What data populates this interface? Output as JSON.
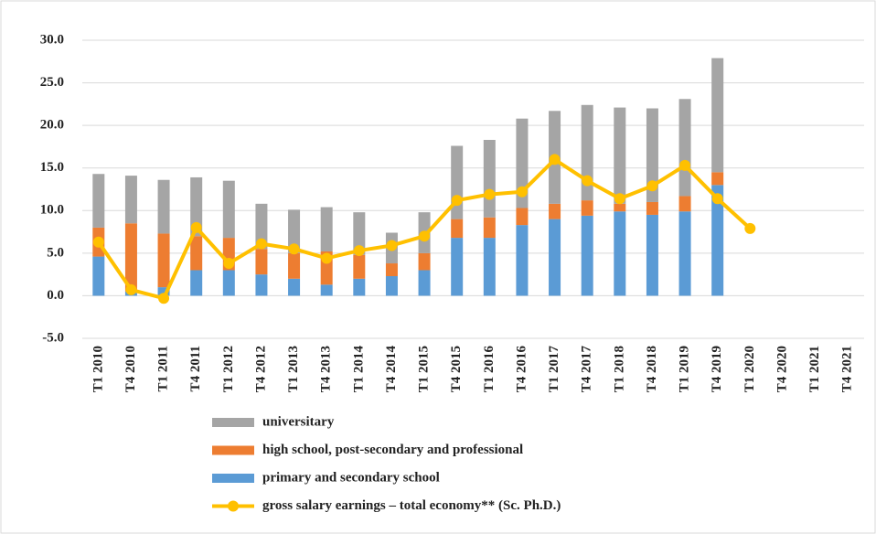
{
  "chart_data": {
    "type": "stacked-bar-line",
    "categories": [
      "T1 2010",
      "T4 2010",
      "T1 2011",
      "T4 2011",
      "T1 2012",
      "T4 2012",
      "T1 2013",
      "T4 2013",
      "T1 2014",
      "T4 2014",
      "T1 2015",
      "T4 2015",
      "T1 2016",
      "T4 2016",
      "T1 2017",
      "T4 2017",
      "T1 2018",
      "T4 2018",
      "T1 2019",
      "T4 2019",
      "T1 2020",
      "T4 2020",
      "T1 2021",
      "T4 2021"
    ],
    "series": [
      {
        "name": "primary and secondary school",
        "type": "bar",
        "color": "#5b9bd5",
        "values": [
          4.6,
          0.5,
          1.0,
          3.0,
          3.0,
          2.5,
          2.0,
          1.3,
          2.0,
          2.3,
          3.0,
          6.8,
          6.8,
          8.3,
          9.0,
          9.4,
          9.9,
          9.5,
          9.9,
          13.0,
          null,
          null,
          null,
          null
        ]
      },
      {
        "name": "high school, post-secondary and professional",
        "type": "bar",
        "color": "#ed7d31",
        "values": [
          3.4,
          8.0,
          6.3,
          4.0,
          3.8,
          3.0,
          3.0,
          3.9,
          2.8,
          1.5,
          2.0,
          2.2,
          2.4,
          2.0,
          1.8,
          1.8,
          0.9,
          1.5,
          1.8,
          1.5,
          null,
          null,
          null,
          null
        ]
      },
      {
        "name": "universitary",
        "type": "bar",
        "color": "#a5a5a5",
        "values": [
          6.3,
          5.6,
          6.3,
          6.9,
          6.7,
          5.3,
          5.1,
          5.2,
          5.0,
          3.6,
          4.8,
          8.6,
          9.1,
          10.5,
          10.9,
          11.2,
          11.3,
          11.0,
          11.4,
          13.4,
          null,
          null,
          null,
          null
        ]
      },
      {
        "name": "gross salary earnings – total economy** (Sc. Ph.D.)",
        "type": "line",
        "color": "#ffc000",
        "values": [
          6.3,
          0.7,
          -0.3,
          8.0,
          3.8,
          6.1,
          5.5,
          4.4,
          5.3,
          5.9,
          7.0,
          11.2,
          11.9,
          12.2,
          16.0,
          13.5,
          11.4,
          12.9,
          15.3,
          11.4,
          7.9,
          null,
          null,
          null
        ]
      }
    ],
    "legend_order": [
      2,
      1,
      0,
      3
    ],
    "ylim": [
      -5,
      30
    ],
    "yticks": [
      {
        "value": -5,
        "label": "-5.0"
      },
      {
        "value": 0,
        "label": "0.0"
      },
      {
        "value": 5,
        "label": "5.0"
      },
      {
        "value": 10,
        "label": "10.0"
      },
      {
        "value": 15,
        "label": "15.0"
      },
      {
        "value": 20,
        "label": "20.0"
      },
      {
        "value": 25,
        "label": "25.0"
      },
      {
        "value": 30,
        "label": "30.0"
      }
    ],
    "grid": true
  }
}
